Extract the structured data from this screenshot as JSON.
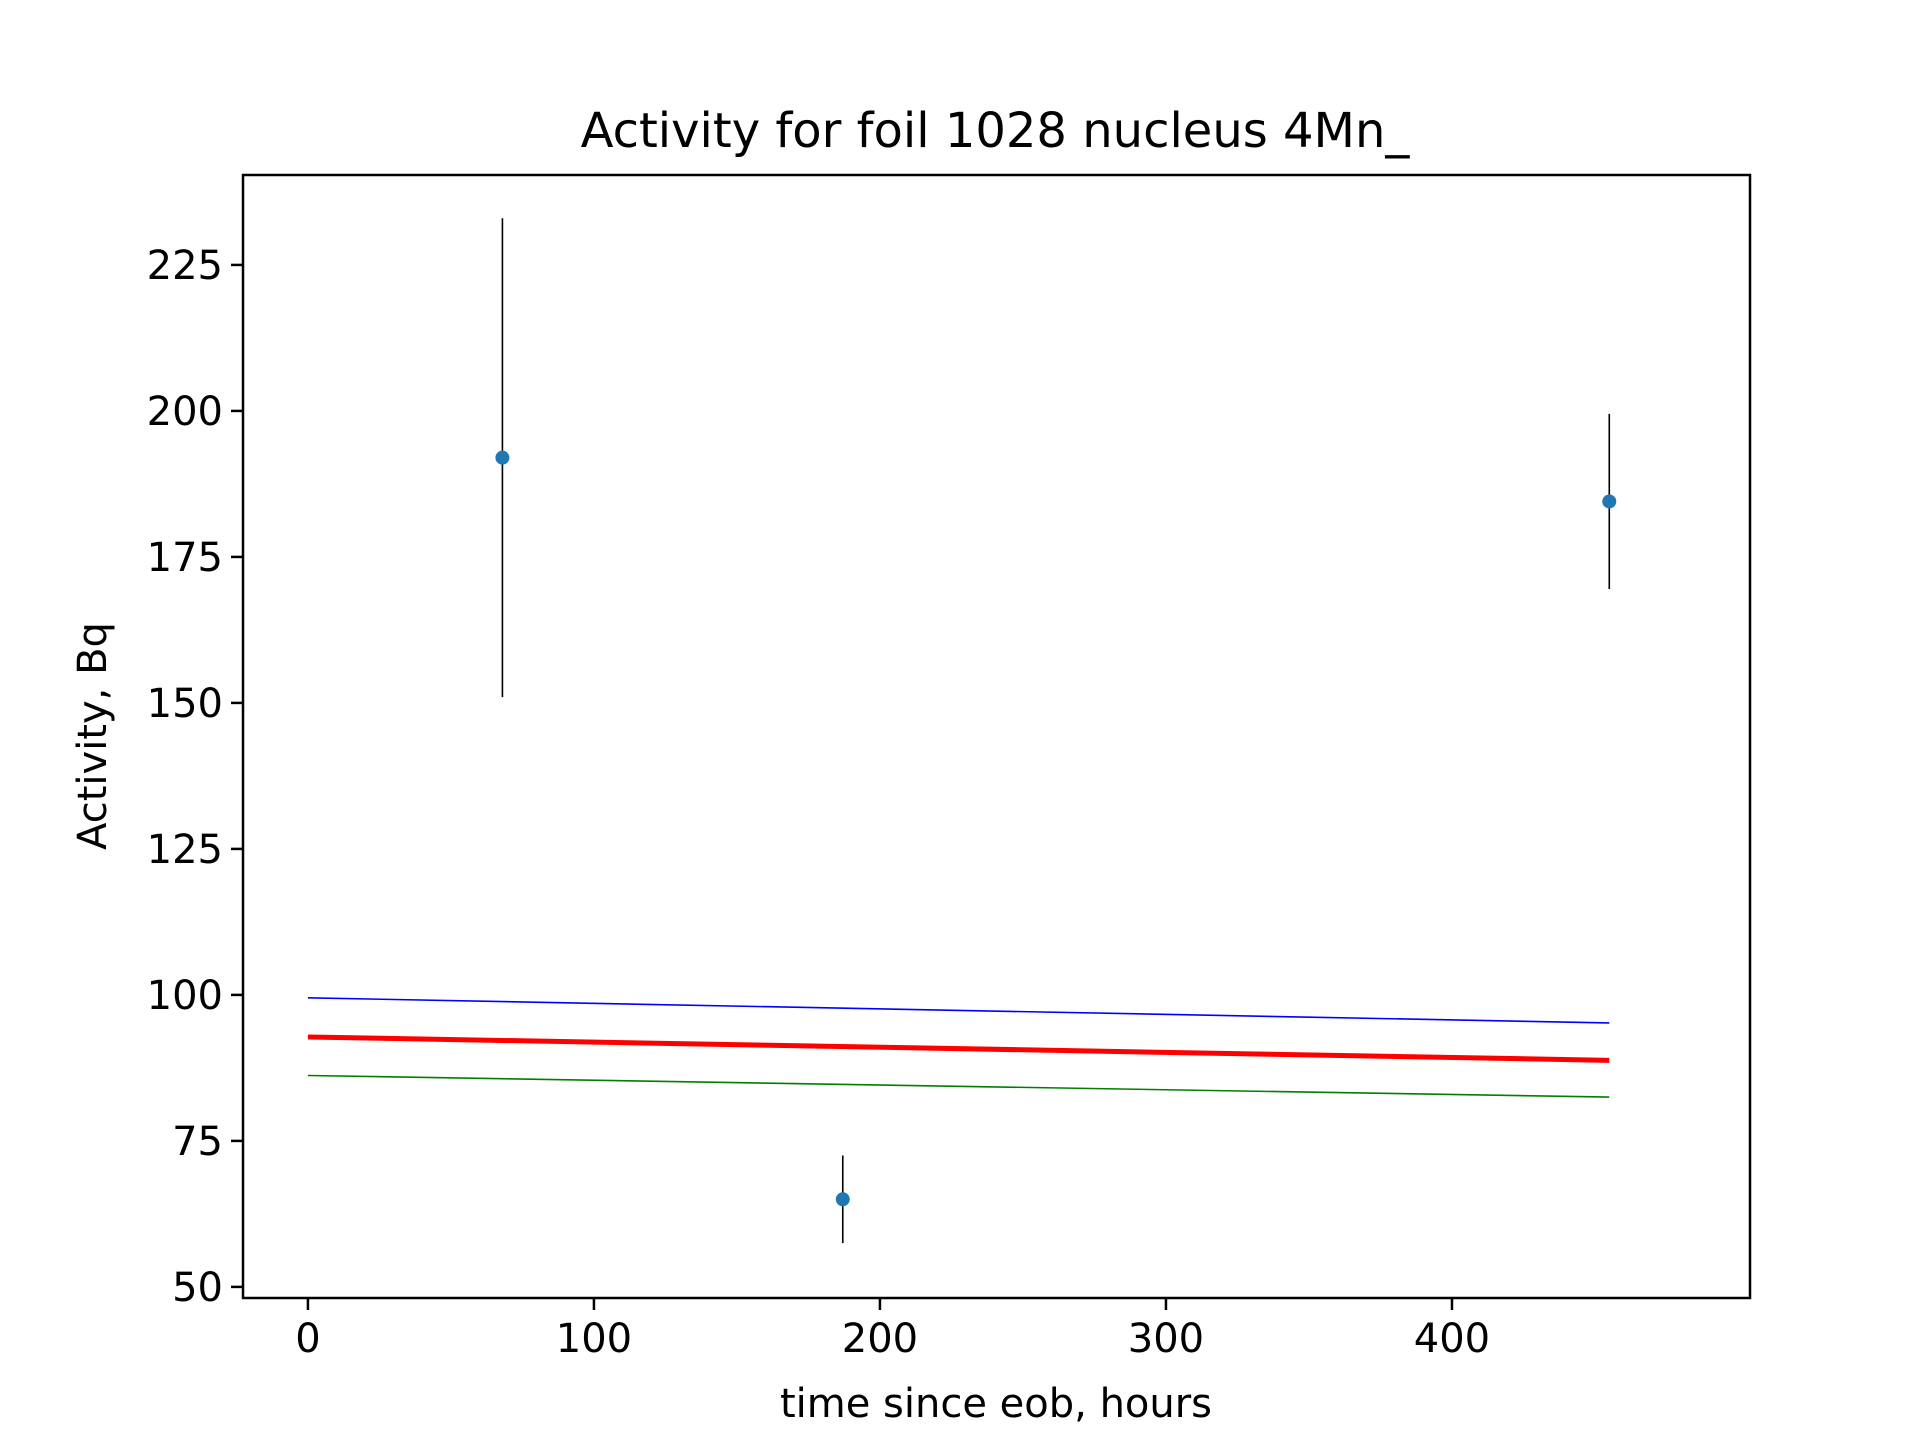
{
  "chart_data": {
    "type": "scatter",
    "title": "Activity for foil 1028 nucleus 4Mn_",
    "xlabel": "time since eob, hours",
    "ylabel": "Activity, Bq",
    "xlim": [
      -22.7,
      504.2
    ],
    "ylim": [
      48.1,
      240.4
    ],
    "xticks": [
      0,
      100,
      200,
      300,
      400
    ],
    "yticks": [
      50,
      75,
      100,
      125,
      150,
      175,
      200,
      225
    ],
    "grid": false,
    "points": [
      {
        "x": 68,
        "y": 192,
        "yerr_low": 151,
        "yerr_high": 233
      },
      {
        "x": 187,
        "y": 65,
        "yerr_low": 57.5,
        "yerr_high": 72.5
      },
      {
        "x": 455,
        "y": 184.5,
        "yerr_low": 169.5,
        "yerr_high": 199.5
      }
    ],
    "lines": [
      {
        "color": "#0000ff",
        "width": "thin",
        "x": [
          0,
          455
        ],
        "y": [
          99.5,
          95.2
        ]
      },
      {
        "color": "#ff0000",
        "width": "thick",
        "x": [
          0,
          455
        ],
        "y": [
          92.8,
          88.8
        ]
      },
      {
        "color": "#008000",
        "width": "thin",
        "x": [
          0,
          455
        ],
        "y": [
          86.2,
          82.5
        ]
      }
    ],
    "colors": {
      "points": "#1f77b4",
      "errorbars": "#000000"
    }
  }
}
